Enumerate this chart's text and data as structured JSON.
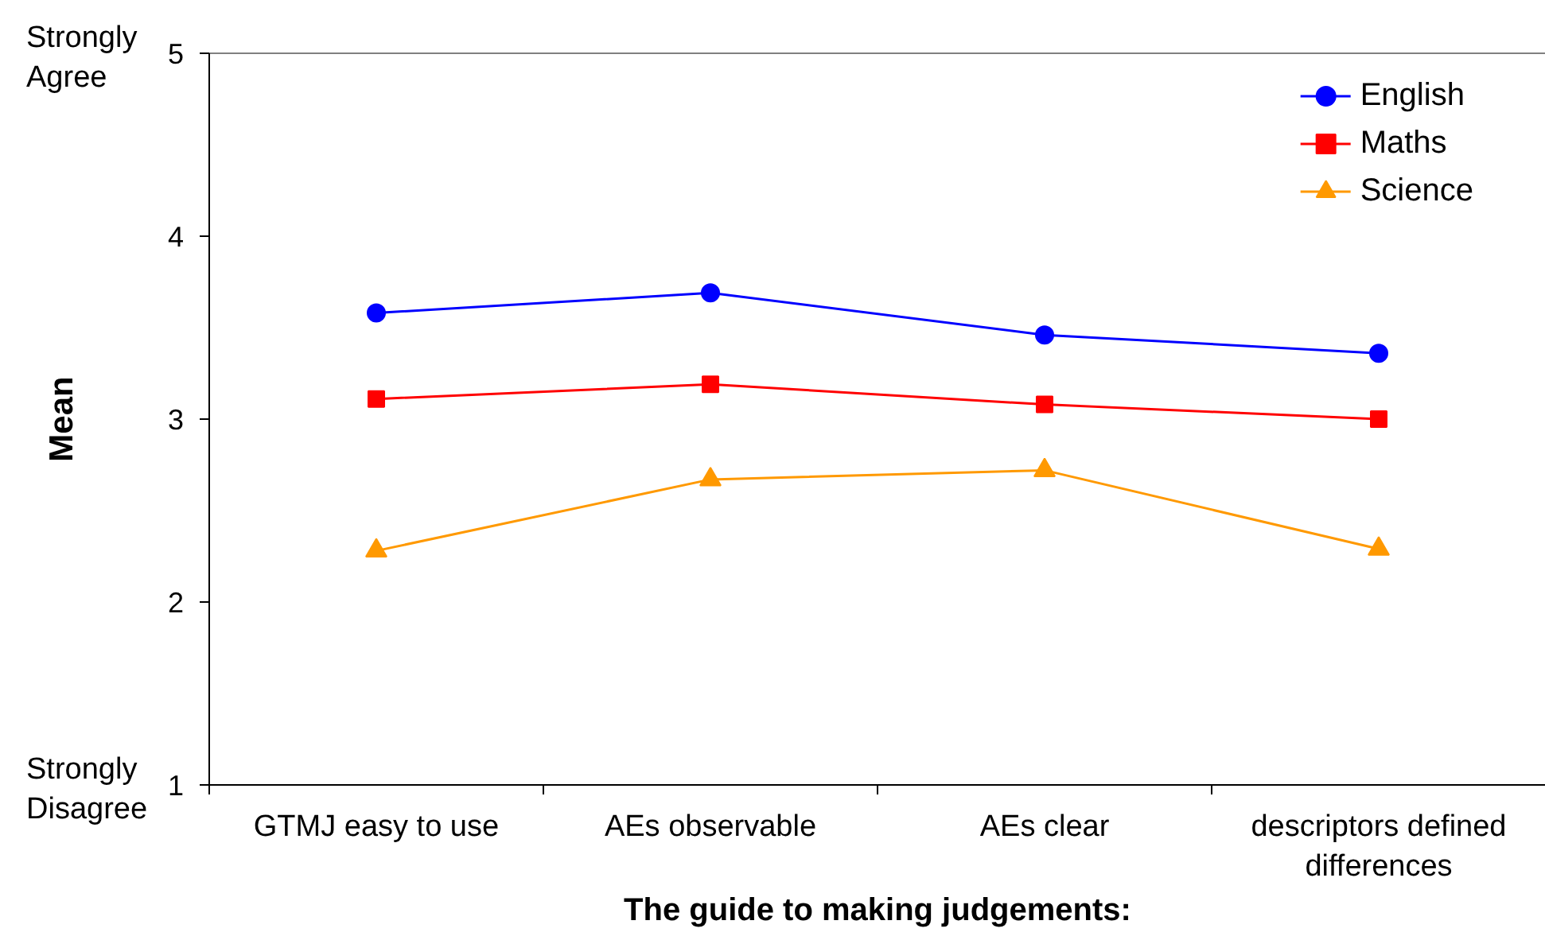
{
  "chart_data": {
    "type": "line",
    "xlabel": "The guide to making judgements:",
    "ylabel": "Mean",
    "categories": [
      "GTMJ easy to use",
      "AEs observable",
      "AEs clear",
      "descriptors defined differences"
    ],
    "series": [
      {
        "name": "English",
        "color": "#0000ff",
        "marker": "circle",
        "values": [
          3.58,
          3.69,
          3.46,
          3.36
        ]
      },
      {
        "name": "Maths",
        "color": "#ff0000",
        "marker": "square",
        "values": [
          3.11,
          3.19,
          3.08,
          3.0
        ]
      },
      {
        "name": "Science",
        "color": "#ff9900",
        "marker": "triangle",
        "values": [
          2.28,
          2.67,
          2.72,
          2.29
        ]
      }
    ],
    "ylim": [
      1,
      5
    ],
    "yticks": [
      1,
      2,
      3,
      4,
      5
    ],
    "legend": "top right",
    "line_style": "solid",
    "annotations": [
      "Strongly Agree",
      "Strongly Disagree"
    ]
  }
}
